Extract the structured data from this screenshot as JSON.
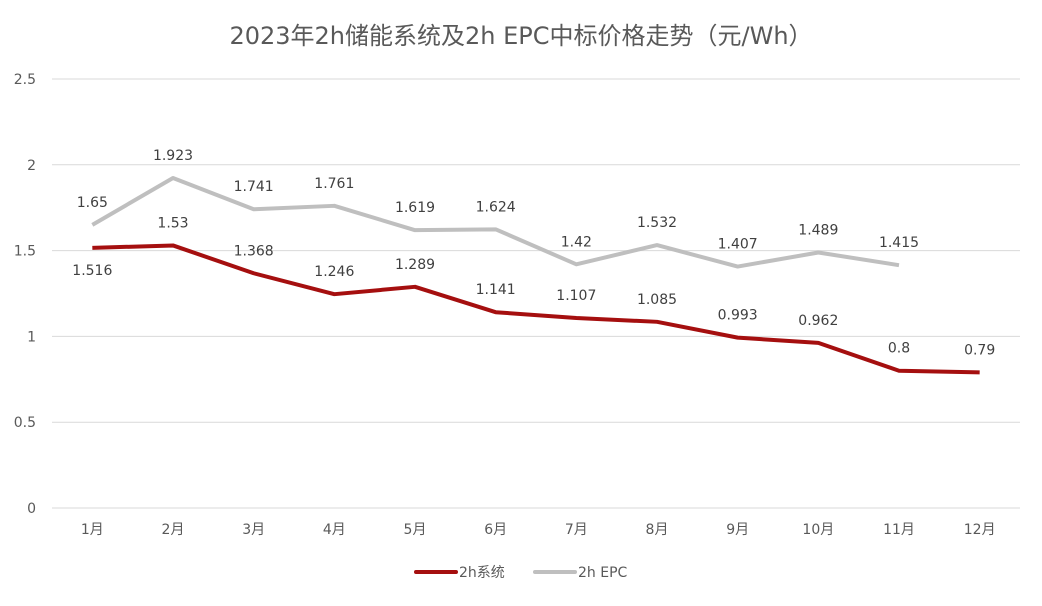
{
  "chart_data": {
    "type": "line",
    "title": "2023年2h储能系统及2h EPC中标价格走势（元/Wh）",
    "xlabel": "",
    "ylabel": "",
    "categories": [
      "1月",
      "2月",
      "3月",
      "4月",
      "5月",
      "6月",
      "7月",
      "8月",
      "9月",
      "10月",
      "11月",
      "12月"
    ],
    "ylim": [
      0,
      2.5
    ],
    "yticks": [
      "0",
      "0.5",
      "1",
      "1.5",
      "2",
      "2.5"
    ],
    "grid": true,
    "legend": "bottom",
    "series": [
      {
        "name": "2h系统",
        "color": "#A50F0F",
        "values": [
          1.516,
          1.53,
          1.368,
          1.246,
          1.289,
          1.141,
          1.107,
          1.085,
          0.993,
          0.962,
          0.8,
          0.79
        ],
        "labels": [
          "1.516",
          "1.53",
          "1.368",
          "1.246",
          "1.289",
          "1.141",
          "1.107",
          "1.085",
          "0.993",
          "0.962",
          "0.8",
          "0.79"
        ]
      },
      {
        "name": "2h EPC",
        "color": "#BFBFBF",
        "values": [
          1.65,
          1.923,
          1.741,
          1.761,
          1.619,
          1.624,
          1.42,
          1.532,
          1.407,
          1.489,
          1.415,
          null
        ],
        "labels": [
          "1.65",
          "1.923",
          "1.741",
          "1.761",
          "1.619",
          "1.624",
          "1.42",
          "1.532",
          "1.407",
          "1.489",
          "1.415",
          ""
        ]
      }
    ]
  }
}
